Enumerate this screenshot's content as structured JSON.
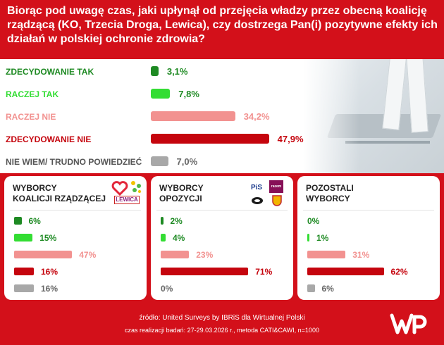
{
  "header": {
    "title": "Biorąc pod uwagę czas, jaki upłynął od przejęcia władzy przez obecną koalicję rządzącą (KO, Trzecia Droga, Lewica), czy dostrzega Pan(i) pozytywne efekty ich działań w polskiej ochronie zdrowia?"
  },
  "colors": {
    "zdecydowanie_tak": "#1e8a23",
    "raczej_tak": "#33dd33",
    "raczej_nie": "#f29290",
    "zdecydowanie_nie": "#c5050e",
    "nie_wiem": "#a8a8a8",
    "background": "#d3101a"
  },
  "chart_data": [
    {
      "type": "bar",
      "orientation": "horizontal",
      "title": "",
      "categories": [
        "ZDECYDOWANIE TAK",
        "RACZEJ TAK",
        "RACZEJ NIE",
        "ZDECYDOWANIE NIE",
        "NIE WIEM/ TRUDNO POWIEDZIEĆ"
      ],
      "values": [
        3.1,
        7.8,
        34.2,
        47.9,
        7.0
      ],
      "value_labels": [
        "3,1%",
        "7,8%",
        "34,2%",
        "47,9%",
        "7,0%"
      ],
      "xlim": [
        0,
        50
      ],
      "grid": false,
      "legend": "none"
    },
    {
      "type": "bar",
      "orientation": "horizontal",
      "title": "WYBORCY KOALICJI RZĄDZĄCEJ",
      "title_lines": [
        "WYBORCY",
        "KOALICJI RZĄDZĄCEJ"
      ],
      "values": [
        6,
        15,
        47,
        16,
        16
      ],
      "value_labels": [
        "6%",
        "15%",
        "47%",
        "16%",
        "16%"
      ],
      "logos": [
        "heart-logo",
        "trzecia-droga-logo",
        "lewica-logo"
      ],
      "logo_text": {
        "lewica": "LEWICA"
      }
    },
    {
      "type": "bar",
      "orientation": "horizontal",
      "title": "WYBORCY OPOZYCJI",
      "title_lines": [
        "WYBORCY",
        "OPOZYCJI"
      ],
      "values": [
        2,
        4,
        23,
        71,
        0
      ],
      "value_labels": [
        "2%",
        "4%",
        "23%",
        "71%",
        "0%"
      ],
      "logos": [
        "pis-logo",
        "razem-logo",
        "konfederacja-logo",
        "korona-logo"
      ],
      "logo_text": {
        "pis": "PiS",
        "razem": "razem"
      }
    },
    {
      "type": "bar",
      "orientation": "horizontal",
      "title": "POZOSTALI WYBORCY",
      "title_lines": [
        "POZOSTALI",
        "WYBORCY"
      ],
      "values": [
        0,
        1,
        31,
        62,
        6
      ],
      "value_labels": [
        "0%",
        "1%",
        "31%",
        "62%",
        "6%"
      ]
    }
  ],
  "footer": {
    "source": "źródło: United Surveys by IBRiS dla Wirtualnej Polski",
    "method": "czas realizacji badań:  27-29.03.2026 r., metoda CATI&CAWI, n=1000",
    "logo": "WP"
  }
}
